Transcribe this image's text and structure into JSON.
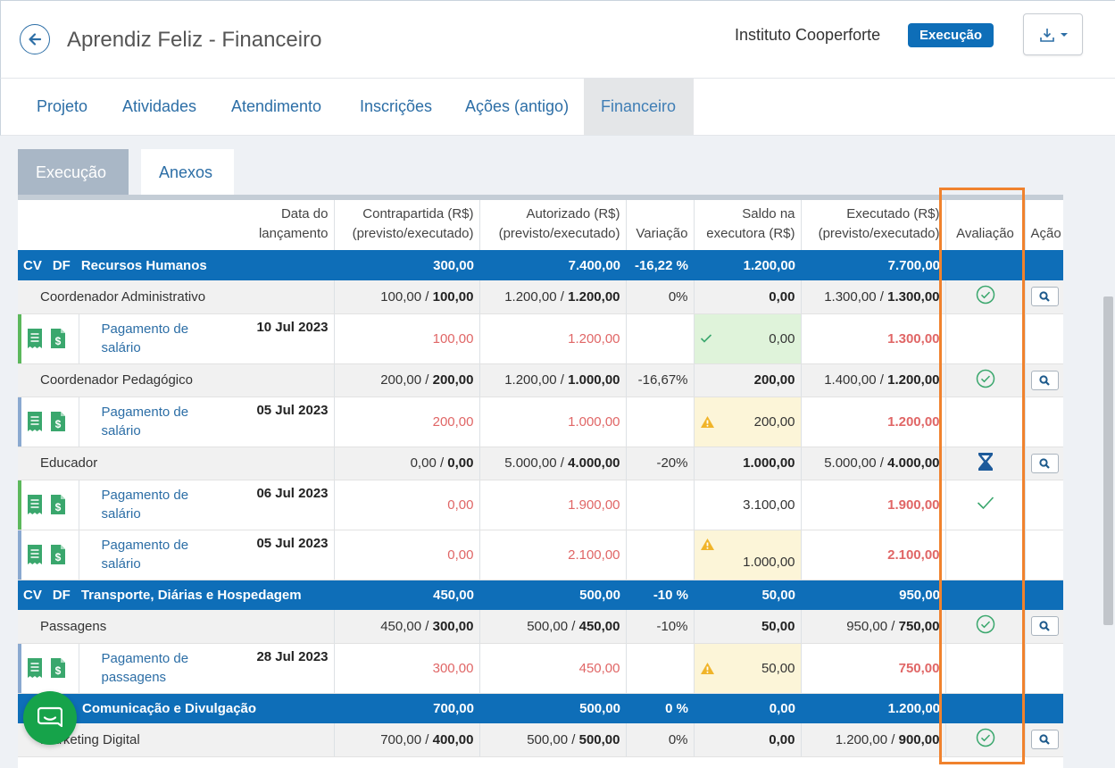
{
  "header": {
    "title": "Aprendiz Feliz - Financeiro",
    "organization": "Instituto Cooperforte",
    "status": "Execução"
  },
  "main_tabs": [
    "Projeto",
    "Atividades",
    "Atendimento",
    "Inscrições",
    "Ações (antigo)",
    "Financeiro"
  ],
  "sub_tabs": [
    "Execução",
    "Anexos"
  ],
  "table": {
    "headers": {
      "date": [
        "Data do",
        "lançamento"
      ],
      "contrapartida": [
        "Contrapartida (R$)",
        "(previsto/executado)"
      ],
      "autorizado": [
        "Autorizado (R$)",
        "(previsto/executado)"
      ],
      "variacao": "Variação",
      "saldo": [
        "Saldo na",
        "executora (R$)"
      ],
      "executado": [
        "Executado (R$)",
        "(previsto/executado)"
      ],
      "avaliacao": "Avaliação",
      "acao": "Ação"
    },
    "cat_prefix": [
      "CV",
      "DF"
    ],
    "categories": [
      {
        "name": "Recursos Humanos",
        "contrapartida": "300,00",
        "autorizado": "7.400,00",
        "variacao": "-16,22 %",
        "saldo": "1.200,00",
        "executado": "7.700,00"
      },
      {
        "name": "Transporte, Diárias e Hospedagem",
        "contrapartida": "450,00",
        "autorizado": "500,00",
        "variacao": "-10 %",
        "saldo": "50,00",
        "executado": "950,00"
      },
      {
        "name": "Comunicação e Divulgação",
        "contrapartida": "700,00",
        "autorizado": "500,00",
        "variacao": "0 %",
        "saldo": "0,00",
        "executado": "1.200,00"
      }
    ],
    "items": [
      {
        "name": "Coordenador Administrativo",
        "contra_prev": "100,00 / ",
        "contra_exec": "100,00",
        "aut_prev": "1.200,00 / ",
        "aut_exec": "1.200,00",
        "variacao": "0%",
        "saldo": "0,00",
        "exec_prev": "1.300,00 / ",
        "exec_exec": "1.300,00"
      },
      {
        "name": "Coordenador Pedagógico",
        "contra_prev": "200,00 / ",
        "contra_exec": "200,00",
        "aut_prev": "1.200,00 / ",
        "aut_exec": "1.000,00",
        "variacao": "-16,67%",
        "saldo": "200,00",
        "exec_prev": "1.400,00 / ",
        "exec_exec": "1.200,00"
      },
      {
        "name": "Educador",
        "contra_prev": "0,00 / ",
        "contra_exec": "0,00",
        "aut_prev": "5.000,00 / ",
        "aut_exec": "4.000,00",
        "variacao": "-20%",
        "saldo": "1.000,00",
        "exec_prev": "5.000,00 / ",
        "exec_exec": "4.000,00"
      },
      {
        "name": "Passagens",
        "contra_prev": "450,00 / ",
        "contra_exec": "300,00",
        "aut_prev": "500,00 / ",
        "aut_exec": "450,00",
        "variacao": "-10%",
        "saldo": "50,00",
        "exec_prev": "950,00 / ",
        "exec_exec": "750,00"
      },
      {
        "name": "Marketing Digital",
        "contra_prev": "700,00 / ",
        "contra_exec": "400,00",
        "aut_prev": "500,00 / ",
        "aut_exec": "500,00",
        "variacao": "0%",
        "saldo": "0,00",
        "exec_prev": "1.200,00 / ",
        "exec_exec": "900,00"
      }
    ],
    "payments": [
      {
        "label_1": "Pagamento de",
        "label_2": "salário",
        "date": "10 Jul 2023",
        "contrapartida": "100,00",
        "autorizado": "1.200,00",
        "saldo": "0,00",
        "executado": "1.300,00"
      },
      {
        "label_1": "Pagamento de",
        "label_2": "salário",
        "date": "05 Jul 2023",
        "contrapartida": "200,00",
        "autorizado": "1.000,00",
        "saldo": "200,00",
        "executado": "1.200,00"
      },
      {
        "label_1": "Pagamento de",
        "label_2": "salário",
        "date": "06 Jul 2023",
        "contrapartida": "0,00",
        "autorizado": "1.900,00",
        "saldo": "3.100,00",
        "executado": "1.900,00"
      },
      {
        "label_1": "Pagamento de",
        "label_2": "salário",
        "date": "05 Jul 2023",
        "contrapartida": "0,00",
        "autorizado": "2.100,00",
        "saldo": "1.000,00",
        "executado": "2.100,00"
      },
      {
        "label_1": "Pagamento de",
        "label_2": "passagens",
        "date": "28 Jul 2023",
        "contrapartida": "300,00",
        "autorizado": "450,00",
        "saldo": "50,00",
        "executado": "750,00"
      }
    ]
  },
  "colors": {
    "primary": "#0e6eb8",
    "link": "#2c6ea6",
    "highlight": "#f0822d",
    "success": "#3aa76d",
    "danger_text": "#e06666",
    "warning": "#f0b429",
    "chat": "#16a34a"
  },
  "icons": {
    "back": "arrow-left-icon",
    "export": "export-icon",
    "receipt": "receipt-icon",
    "document": "document-dollar-icon",
    "approved": "check-circle-icon",
    "pending": "hourglass-icon",
    "search": "search-icon",
    "warning": "warning-icon",
    "chat": "chat-icon"
  }
}
